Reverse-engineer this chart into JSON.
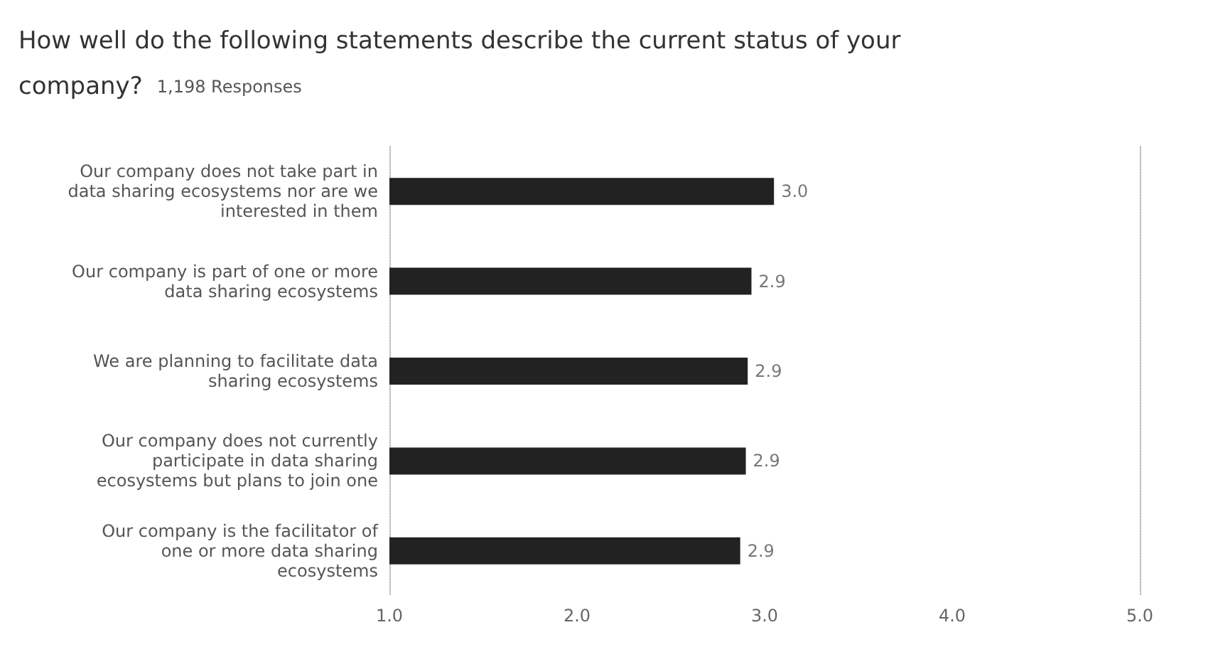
{
  "chart_data": {
    "type": "bar",
    "orientation": "horizontal",
    "title": "How well do the following statements describe the current status of your company?",
    "subtitle": "1,198 Responses",
    "categories": [
      "Our company does not take part in data sharing ecosystems nor are we interested in them",
      "Our company is part of one or more data sharing ecosystems",
      "We are planning to facilitate data sharing ecosystems",
      "Our company does not currently participate in data sharing ecosystems but plans to join one",
      "Our company is the facilitator of one or more data sharing ecosystems"
    ],
    "values": [
      3.05,
      2.93,
      2.91,
      2.9,
      2.87
    ],
    "value_labels": [
      "3.0",
      "2.9",
      "2.9",
      "2.9",
      "2.9"
    ],
    "color": "#222222",
    "xlim": [
      1,
      5
    ],
    "xticks": [
      {
        "value": 1,
        "label": "1.0"
      },
      {
        "value": 2,
        "label": "2.0"
      },
      {
        "value": 3,
        "label": "3.0"
      },
      {
        "value": 4,
        "label": "4.0"
      },
      {
        "value": 5,
        "label": "5.0"
      }
    ],
    "grid": false
  }
}
